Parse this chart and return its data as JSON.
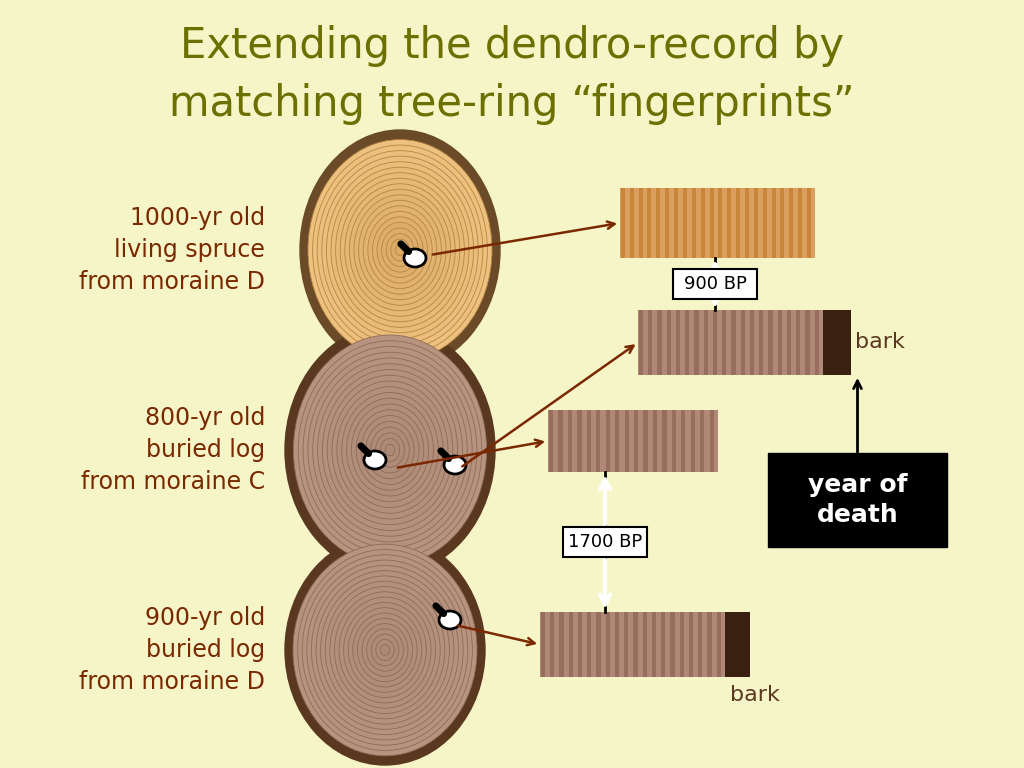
{
  "bg_color": "#f5f5c8",
  "title_line1": "Extending the dendro-record by",
  "title_line2": "matching tree-ring “fingerprints”",
  "title_color": "#6b7000",
  "label_color": "#7a2800",
  "tree1_label": "1000-yr old\nliving spruce\nfrom moraine D",
  "tree2_label": "800-yr old\nburied log\nfrom moraine C",
  "tree3_label": "900-yr old\nburied log\nfrom moraine D",
  "arrow_color": "#7a2800",
  "bark_text_color": "#5a3820",
  "bp900_label": "900 BP",
  "bp1700_label": "1700 BP",
  "bark_label": "bark",
  "year_death_label": "year of\ndeath"
}
